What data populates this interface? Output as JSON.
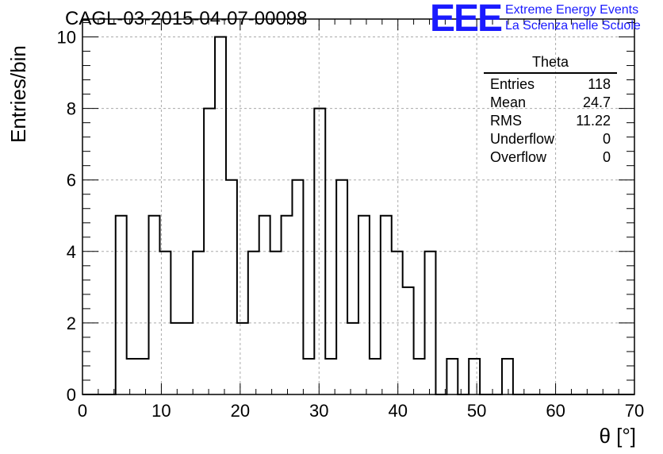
{
  "title": "CAGL-03-2015-04-07-00098",
  "logo": {
    "mark": "EEE",
    "line1": "Extreme Energy Events",
    "line2": "La Scienza nelle Scuole"
  },
  "stats": {
    "title": "Theta",
    "rows": [
      {
        "label": "Entries",
        "value": "118"
      },
      {
        "label": "Mean",
        "value": "24.7"
      },
      {
        "label": "RMS",
        "value": "11.22"
      },
      {
        "label": "Underflow",
        "value": "0"
      },
      {
        "label": "Overflow",
        "value": "0"
      }
    ]
  },
  "chart_data": {
    "type": "bar",
    "style": "step-histogram",
    "xlabel": "θ [°]",
    "ylabel": "Entries/bin",
    "xlim": [
      0,
      70
    ],
    "ylim": [
      0,
      10.5
    ],
    "grid": true,
    "bin_width": 1.4,
    "values": [
      0,
      0,
      0,
      5,
      1,
      1,
      5,
      4,
      2,
      2,
      4,
      8,
      10,
      6,
      2,
      4,
      5,
      4,
      5,
      6,
      1,
      8,
      1,
      6,
      2,
      5,
      1,
      5,
      4,
      3,
      1,
      4,
      0,
      1,
      0,
      1,
      0,
      0,
      1,
      0,
      0,
      0,
      0,
      0,
      0,
      0,
      0,
      0,
      0,
      0
    ],
    "xticks": [
      0,
      10,
      20,
      30,
      40,
      50,
      60,
      70
    ],
    "yticks": [
      0,
      2,
      4,
      6,
      8,
      10
    ],
    "colors": {
      "line": "#000000",
      "grid": "#aaaaaa",
      "logo": "#1a1aff"
    }
  }
}
